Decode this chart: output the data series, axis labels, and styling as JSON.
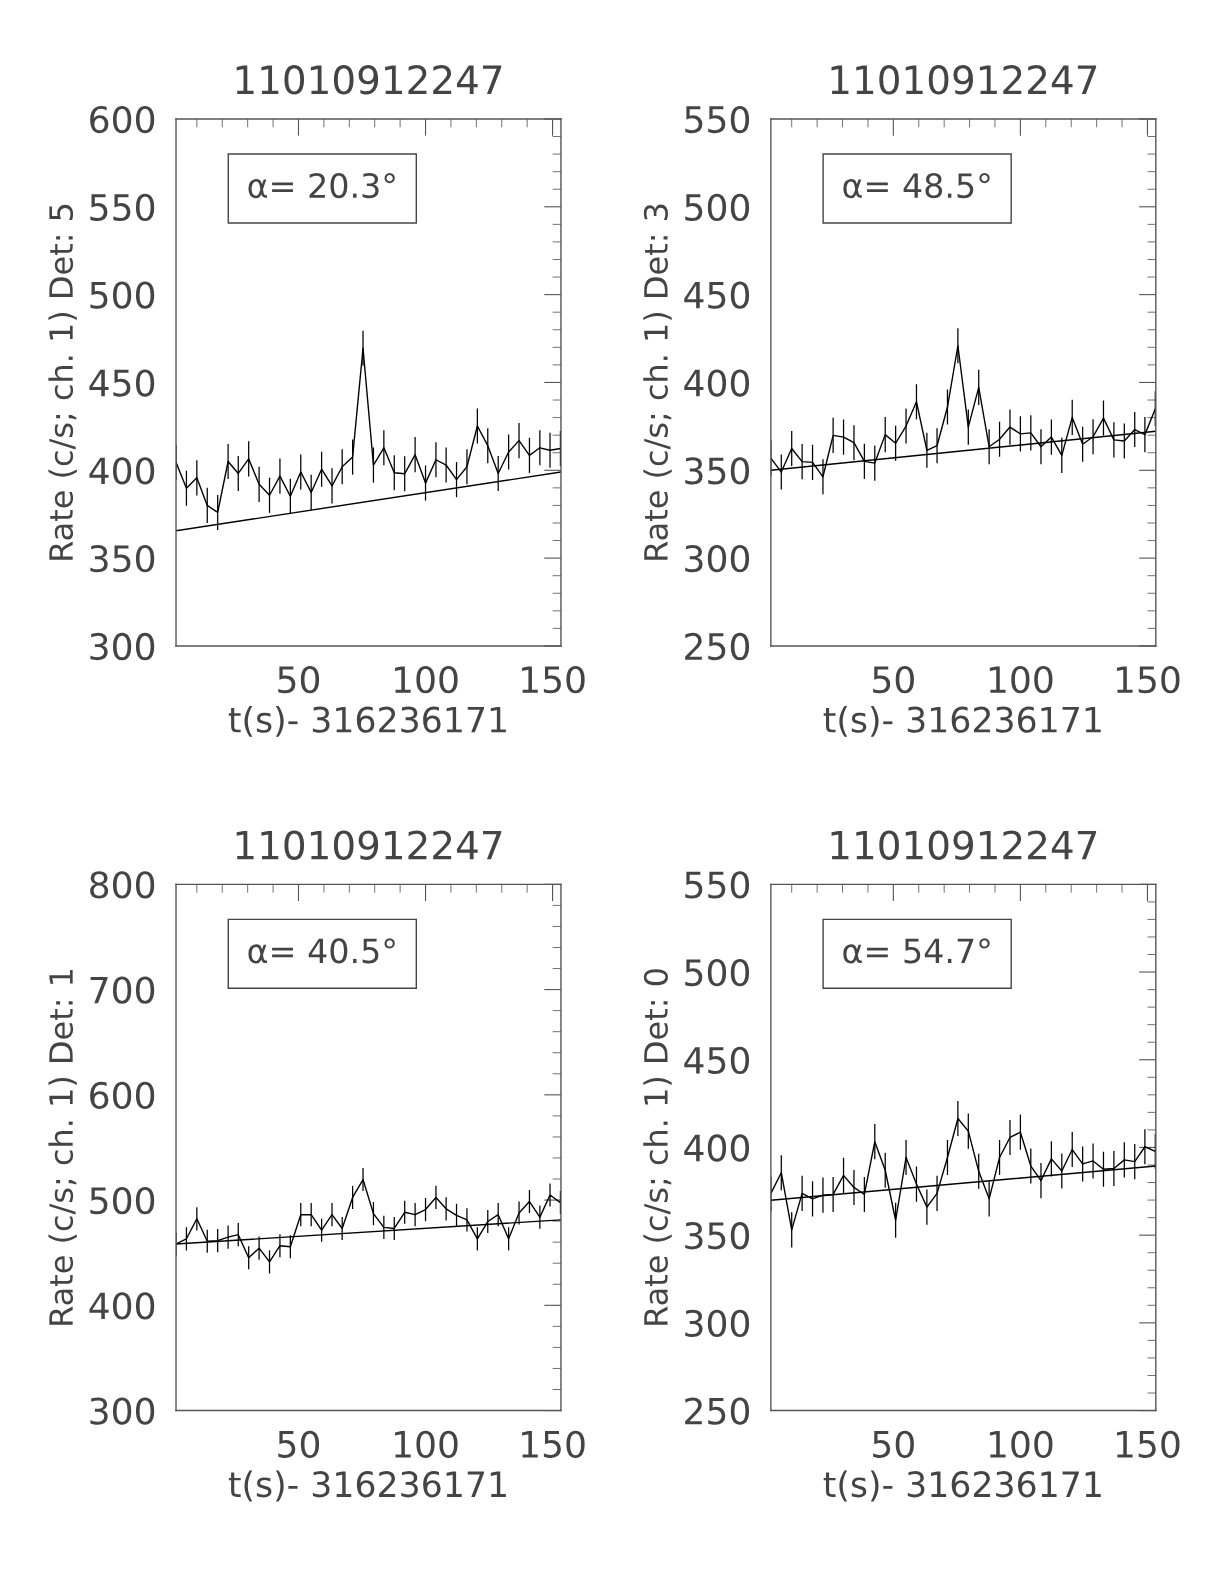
{
  "chart_data": [
    {
      "type": "line",
      "title": "11010912247",
      "xlabel": "t(s)- 316236171",
      "ylabel": "Rate (c/s; ch. 1) Det: 5",
      "annotations": [
        "α= 20.3°"
      ],
      "xlim": [
        1.8,
        153.3
      ],
      "xticks": [
        50,
        100,
        150
      ],
      "ylim": [
        300,
        600
      ],
      "yticks": [
        300,
        350,
        400,
        450,
        500,
        550,
        600
      ],
      "series": [
        {
          "color": "#000000",
          "x": [
            1.8,
            5.9,
            10.0,
            14.1,
            18.2,
            22.3,
            26.3,
            30.4,
            34.5,
            38.6,
            42.7,
            46.8,
            50.9,
            55.0,
            59.1,
            63.2,
            67.2,
            71.3,
            75.4,
            79.5,
            83.6,
            87.7,
            91.8,
            95.9,
            100.0,
            104.1,
            108.1,
            112.2,
            116.3,
            120.4,
            124.5,
            128.6,
            132.7,
            136.8,
            140.9,
            145.0,
            149.0,
            153.1
          ],
          "values": [
            404.5,
            389.8,
            395.7,
            380,
            376,
            405,
            398.2,
            406.5,
            392,
            385.8,
            396.7,
            385.2,
            399,
            387.4,
            400.6,
            391.1,
            402,
            407.5,
            469.5,
            403,
            412.8,
            398.6,
            398,
            408.9,
            392.7,
            406,
            403,
            394.7,
            402,
            425.2,
            414,
            398.2,
            410.4,
            416.9,
            408.5,
            412.8,
            411.4,
            412.4
          ],
          "errors": [
            10,
            10,
            10,
            10,
            10,
            10,
            10,
            10,
            10,
            10,
            10,
            10,
            10,
            10,
            10,
            10,
            10,
            10,
            10,
            10,
            10,
            10,
            10,
            10,
            10,
            10,
            10,
            10,
            10,
            10,
            10,
            10,
            10,
            10,
            10,
            10,
            10,
            10
          ]
        },
        {
          "type": "line",
          "color": "#000000",
          "x": [
            1.8,
            153.3
          ],
          "values": [
            365.6,
            399
          ]
        }
      ]
    },
    {
      "type": "line",
      "title": "11010912247",
      "xlabel": "t(s)- 316236171",
      "ylabel": "Rate (c/s; ch. 1) Det: 3",
      "annotations": [
        "α= 48.5°"
      ],
      "xlim": [
        1.8,
        153.3
      ],
      "xticks": [
        50,
        100,
        150
      ],
      "ylim": [
        250,
        550
      ],
      "yticks": [
        250,
        300,
        350,
        400,
        450,
        500,
        550
      ],
      "series": [
        {
          "color": "#000000",
          "x": [
            1.8,
            5.9,
            10.0,
            14.1,
            18.2,
            22.3,
            26.3,
            30.4,
            34.5,
            38.6,
            42.7,
            46.8,
            50.9,
            55.0,
            59.1,
            63.2,
            67.2,
            71.3,
            75.4,
            79.5,
            83.6,
            87.7,
            91.8,
            95.9,
            100.0,
            104.1,
            108.1,
            112.2,
            116.3,
            120.4,
            124.5,
            128.6,
            132.7,
            136.8,
            140.9,
            145.0,
            149.0,
            153.1
          ],
          "values": [
            356.9,
            349,
            362.4,
            354.9,
            354.5,
            346.3,
            369.9,
            368.9,
            365.7,
            355.1,
            354.1,
            370.3,
            365.4,
            375.2,
            389,
            361.4,
            364,
            386,
            420.9,
            374.6,
            397.2,
            363.4,
            367.7,
            374.6,
            370.7,
            371.3,
            363.4,
            368.9,
            358.5,
            380.1,
            364.8,
            369.1,
            379.7,
            367.3,
            366.7,
            373.2,
            370.3,
            385
          ],
          "errors": [
            10,
            10,
            10,
            10,
            10,
            10,
            10,
            10,
            10,
            10,
            10,
            10,
            10,
            10,
            10,
            10,
            10,
            10,
            10,
            10,
            10,
            10,
            10,
            10,
            10,
            10,
            10,
            10,
            10,
            10,
            10,
            10,
            10,
            10,
            10,
            10,
            10,
            10
          ]
        },
        {
          "type": "line",
          "color": "#000000",
          "x": [
            1.8,
            153.3
          ],
          "values": [
            350,
            372.2
          ]
        }
      ]
    },
    {
      "type": "line",
      "title": "11010912247",
      "xlabel": "t(s)- 316236171",
      "ylabel": "Rate (c/s; ch. 1) Det: 1",
      "annotations": [
        "α= 40.5°"
      ],
      "xlim": [
        1.8,
        153.3
      ],
      "xticks": [
        50,
        100,
        150
      ],
      "ylim": [
        300,
        800
      ],
      "yticks": [
        300,
        400,
        500,
        600,
        700,
        800
      ],
      "series": [
        {
          "color": "#000000",
          "x": [
            1.8,
            5.9,
            10.0,
            14.1,
            18.2,
            22.3,
            26.3,
            30.4,
            34.5,
            38.6,
            42.7,
            46.8,
            50.9,
            55.0,
            59.1,
            63.2,
            67.2,
            71.3,
            75.4,
            79.5,
            83.6,
            87.7,
            91.8,
            95.9,
            100.0,
            104.1,
            108.1,
            112.2,
            116.3,
            120.4,
            124.5,
            128.6,
            132.7,
            136.8,
            140.9,
            145.0,
            149.0,
            153.1
          ],
          "values": [
            458.3,
            463.2,
            482.2,
            460.9,
            461.5,
            464.8,
            467.1,
            445.2,
            454.3,
            441.2,
            456.6,
            455.6,
            486.1,
            486.1,
            471.4,
            486.1,
            473,
            502.5,
            519.5,
            487.1,
            474,
            473,
            488.4,
            486.1,
            491,
            502.5,
            491.7,
            485.5,
            481.2,
            463.2,
            479.6,
            486.1,
            463.2,
            487.7,
            498.6,
            483.8,
            504.8,
            497.6
          ],
          "errors": [
            11,
            11,
            11,
            11,
            11,
            11,
            11,
            11,
            11,
            11,
            11,
            11,
            11,
            11,
            11,
            11,
            11,
            11,
            11,
            11,
            11,
            11,
            11,
            11,
            11,
            11,
            11,
            11,
            11,
            11,
            11,
            11,
            11,
            11,
            11,
            11,
            11,
            11
          ]
        },
        {
          "type": "line",
          "color": "#000000",
          "x": [
            1.8,
            153.3
          ],
          "values": [
            458.3,
            481.2
          ]
        }
      ]
    },
    {
      "type": "line",
      "title": "11010912247",
      "xlabel": "t(s)- 316236171",
      "ylabel": "Rate (c/s; ch. 1) Det: 0",
      "annotations": [
        "α= 54.7°"
      ],
      "xlim": [
        1.8,
        153.3
      ],
      "xticks": [
        50,
        100,
        150
      ],
      "ylim": [
        250,
        550
      ],
      "yticks": [
        250,
        300,
        350,
        400,
        450,
        500,
        550
      ],
      "series": [
        {
          "color": "#000000",
          "x": [
            1.8,
            5.9,
            10.0,
            14.1,
            18.2,
            22.3,
            26.3,
            30.4,
            34.5,
            38.6,
            42.7,
            46.8,
            50.9,
            55.0,
            59.1,
            63.2,
            67.2,
            71.3,
            75.4,
            79.5,
            83.6,
            87.7,
            91.8,
            95.9,
            100.0,
            104.1,
            108.1,
            112.2,
            116.3,
            120.4,
            124.5,
            128.6,
            132.7,
            136.8,
            140.9,
            145.0,
            149.0,
            153.1
          ],
          "values": [
            373.8,
            385.6,
            353,
            373.8,
            370.7,
            372.8,
            373.2,
            384.1,
            377.2,
            373.2,
            403.3,
            387,
            358.5,
            394.3,
            379.1,
            366,
            373.8,
            394.3,
            416.5,
            409.3,
            386.4,
            370.7,
            394.3,
            405.7,
            408.7,
            389.4,
            381.1,
            393.5,
            386.6,
            398.8,
            390.6,
            392.3,
            387.6,
            388,
            392.9,
            391.9,
            400.4,
            397.8
          ],
          "errors": [
            10,
            10,
            10,
            10,
            10,
            10,
            10,
            10,
            10,
            10,
            10,
            10,
            10,
            10,
            10,
            10,
            10,
            10,
            10,
            10,
            10,
            10,
            10,
            10,
            10,
            10,
            10,
            10,
            10,
            10,
            10,
            10,
            10,
            10,
            10,
            10,
            10,
            10
          ]
        },
        {
          "type": "line",
          "color": "#000000",
          "x": [
            1.8,
            153.3
          ],
          "values": [
            369.9,
            389.4
          ]
        }
      ]
    }
  ]
}
